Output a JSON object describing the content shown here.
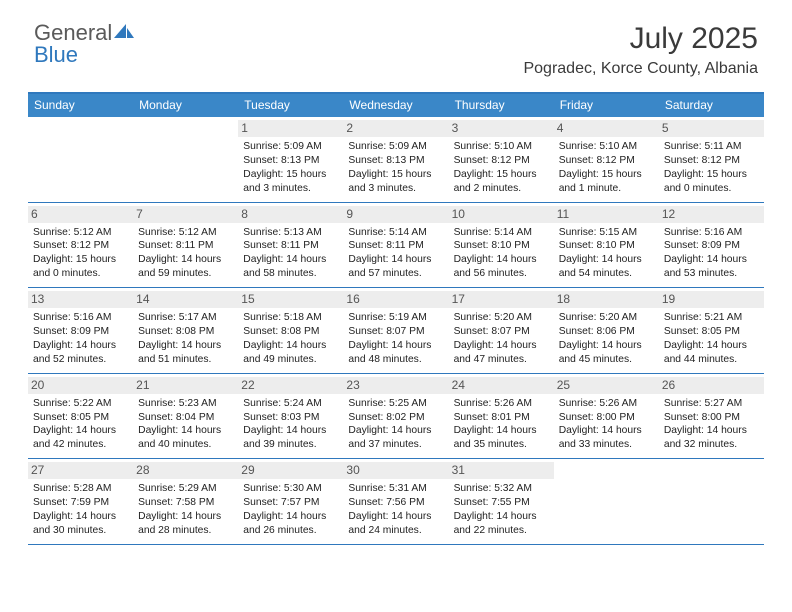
{
  "brand": {
    "part1": "General",
    "part2": "Blue"
  },
  "title": "July 2025",
  "location": "Pogradec, Korce County, Albania",
  "colors": {
    "header_bg": "#3a87c8",
    "border": "#2f78bd",
    "daynum_bg": "#ededed",
    "text": "#222222"
  },
  "dow": [
    "Sunday",
    "Monday",
    "Tuesday",
    "Wednesday",
    "Thursday",
    "Friday",
    "Saturday"
  ],
  "weeks": [
    [
      null,
      null,
      {
        "n": "1",
        "sr": "5:09 AM",
        "ss": "8:13 PM",
        "dl": "15 hours and 3 minutes."
      },
      {
        "n": "2",
        "sr": "5:09 AM",
        "ss": "8:13 PM",
        "dl": "15 hours and 3 minutes."
      },
      {
        "n": "3",
        "sr": "5:10 AM",
        "ss": "8:12 PM",
        "dl": "15 hours and 2 minutes."
      },
      {
        "n": "4",
        "sr": "5:10 AM",
        "ss": "8:12 PM",
        "dl": "15 hours and 1 minute."
      },
      {
        "n": "5",
        "sr": "5:11 AM",
        "ss": "8:12 PM",
        "dl": "15 hours and 0 minutes."
      }
    ],
    [
      {
        "n": "6",
        "sr": "5:12 AM",
        "ss": "8:12 PM",
        "dl": "15 hours and 0 minutes."
      },
      {
        "n": "7",
        "sr": "5:12 AM",
        "ss": "8:11 PM",
        "dl": "14 hours and 59 minutes."
      },
      {
        "n": "8",
        "sr": "5:13 AM",
        "ss": "8:11 PM",
        "dl": "14 hours and 58 minutes."
      },
      {
        "n": "9",
        "sr": "5:14 AM",
        "ss": "8:11 PM",
        "dl": "14 hours and 57 minutes."
      },
      {
        "n": "10",
        "sr": "5:14 AM",
        "ss": "8:10 PM",
        "dl": "14 hours and 56 minutes."
      },
      {
        "n": "11",
        "sr": "5:15 AM",
        "ss": "8:10 PM",
        "dl": "14 hours and 54 minutes."
      },
      {
        "n": "12",
        "sr": "5:16 AM",
        "ss": "8:09 PM",
        "dl": "14 hours and 53 minutes."
      }
    ],
    [
      {
        "n": "13",
        "sr": "5:16 AM",
        "ss": "8:09 PM",
        "dl": "14 hours and 52 minutes."
      },
      {
        "n": "14",
        "sr": "5:17 AM",
        "ss": "8:08 PM",
        "dl": "14 hours and 51 minutes."
      },
      {
        "n": "15",
        "sr": "5:18 AM",
        "ss": "8:08 PM",
        "dl": "14 hours and 49 minutes."
      },
      {
        "n": "16",
        "sr": "5:19 AM",
        "ss": "8:07 PM",
        "dl": "14 hours and 48 minutes."
      },
      {
        "n": "17",
        "sr": "5:20 AM",
        "ss": "8:07 PM",
        "dl": "14 hours and 47 minutes."
      },
      {
        "n": "18",
        "sr": "5:20 AM",
        "ss": "8:06 PM",
        "dl": "14 hours and 45 minutes."
      },
      {
        "n": "19",
        "sr": "5:21 AM",
        "ss": "8:05 PM",
        "dl": "14 hours and 44 minutes."
      }
    ],
    [
      {
        "n": "20",
        "sr": "5:22 AM",
        "ss": "8:05 PM",
        "dl": "14 hours and 42 minutes."
      },
      {
        "n": "21",
        "sr": "5:23 AM",
        "ss": "8:04 PM",
        "dl": "14 hours and 40 minutes."
      },
      {
        "n": "22",
        "sr": "5:24 AM",
        "ss": "8:03 PM",
        "dl": "14 hours and 39 minutes."
      },
      {
        "n": "23",
        "sr": "5:25 AM",
        "ss": "8:02 PM",
        "dl": "14 hours and 37 minutes."
      },
      {
        "n": "24",
        "sr": "5:26 AM",
        "ss": "8:01 PM",
        "dl": "14 hours and 35 minutes."
      },
      {
        "n": "25",
        "sr": "5:26 AM",
        "ss": "8:00 PM",
        "dl": "14 hours and 33 minutes."
      },
      {
        "n": "26",
        "sr": "5:27 AM",
        "ss": "8:00 PM",
        "dl": "14 hours and 32 minutes."
      }
    ],
    [
      {
        "n": "27",
        "sr": "5:28 AM",
        "ss": "7:59 PM",
        "dl": "14 hours and 30 minutes."
      },
      {
        "n": "28",
        "sr": "5:29 AM",
        "ss": "7:58 PM",
        "dl": "14 hours and 28 minutes."
      },
      {
        "n": "29",
        "sr": "5:30 AM",
        "ss": "7:57 PM",
        "dl": "14 hours and 26 minutes."
      },
      {
        "n": "30",
        "sr": "5:31 AM",
        "ss": "7:56 PM",
        "dl": "14 hours and 24 minutes."
      },
      {
        "n": "31",
        "sr": "5:32 AM",
        "ss": "7:55 PM",
        "dl": "14 hours and 22 minutes."
      },
      null,
      null
    ]
  ],
  "labels": {
    "sunrise": "Sunrise:",
    "sunset": "Sunset:",
    "daylight": "Daylight:"
  }
}
